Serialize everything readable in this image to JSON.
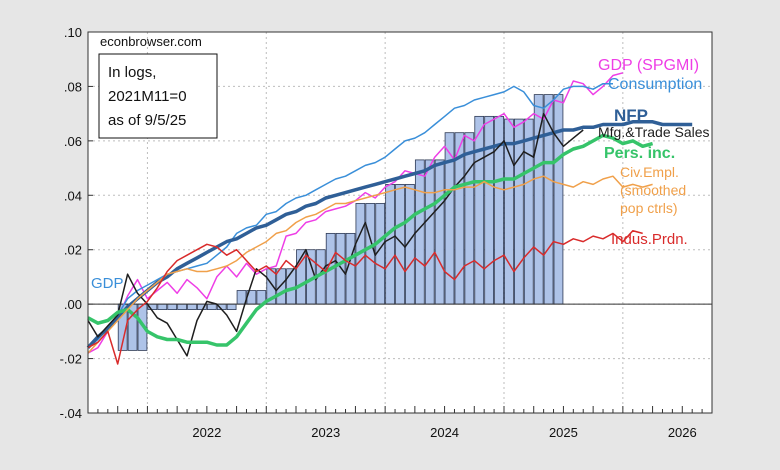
{
  "chart_data": {
    "type": "line",
    "source": "econbrowser.com",
    "note_lines": [
      "In logs,",
      "2021M11=0",
      "as of 9/5/25"
    ],
    "ylim": [
      -0.04,
      0.1
    ],
    "yticks": [
      -0.04,
      -0.02,
      0.0,
      0.02,
      0.04,
      0.06,
      0.08,
      0.1
    ],
    "ytick_labels": [
      "-.04",
      "-.02",
      ".00",
      ".02",
      ".04",
      ".06",
      ".08",
      ".10"
    ],
    "xlim": [
      2021.5,
      2026.75
    ],
    "xticks": [
      2022,
      2023,
      2024,
      2025,
      2026
    ],
    "xtick_labels": [
      "2022",
      "2023",
      "2024",
      "2025",
      "2026"
    ],
    "grid": true,
    "bars": {
      "name": "GDP",
      "color": "#aec3e8",
      "edge": "#2e3a55",
      "quarters": [
        2021.75,
        2022.0,
        2022.25,
        2022.5,
        2022.75,
        2023.0,
        2023.25,
        2023.5,
        2023.75,
        2024.0,
        2024.25,
        2024.5,
        2024.75,
        2025.0,
        2025.25
      ],
      "values": [
        -0.017,
        -0.002,
        -0.002,
        -0.002,
        0.005,
        0.013,
        0.02,
        0.026,
        0.037,
        0.044,
        0.053,
        0.063,
        0.069,
        0.068,
        0.077
      ]
    },
    "series": [
      {
        "name": "GDP (SPGMI)",
        "color": "#ee3ee6",
        "width": 1.5,
        "start": 2021.5,
        "values": [
          -0.018,
          -0.016,
          -0.01,
          -0.005,
          0.003,
          0.009,
          0.002,
          0.005,
          0.008,
          0.004,
          0.009,
          0.006,
          0.002,
          0.01,
          0.014,
          0.01,
          0.015,
          0.011,
          0.013,
          0.014,
          0.025,
          0.026,
          0.03,
          0.031,
          0.034,
          0.035,
          0.036,
          0.038,
          0.041,
          0.039,
          0.043,
          0.045,
          0.049,
          0.048,
          0.047,
          0.054,
          0.058,
          0.053,
          0.062,
          0.06,
          0.066,
          0.068,
          0.07,
          0.065,
          0.067,
          0.07,
          0.068,
          0.075,
          0.074,
          0.082,
          0.081,
          0.077,
          0.08,
          0.084,
          0.085
        ]
      },
      {
        "name": "Consumption",
        "color": "#3a8fd9",
        "width": 1.5,
        "start": 2021.5,
        "values": [
          -0.016,
          -0.013,
          -0.009,
          -0.004,
          0.002,
          0.005,
          0.007,
          0.009,
          0.011,
          0.012,
          0.013,
          0.014,
          0.015,
          0.018,
          0.021,
          0.026,
          0.028,
          0.029,
          0.033,
          0.034,
          0.037,
          0.039,
          0.04,
          0.042,
          0.044,
          0.046,
          0.047,
          0.049,
          0.051,
          0.052,
          0.054,
          0.057,
          0.06,
          0.061,
          0.063,
          0.066,
          0.069,
          0.072,
          0.073,
          0.075,
          0.076,
          0.077,
          0.078,
          0.08,
          0.078,
          0.073,
          0.072,
          0.075,
          0.079,
          0.08,
          0.08,
          0.079,
          0.081,
          0.081
        ]
      },
      {
        "name": "NFP",
        "color": "#2f5f97",
        "width": 3.5,
        "start": 2021.5,
        "values": [
          -0.016,
          -0.012,
          -0.009,
          -0.005,
          -0.001,
          0.002,
          0.005,
          0.008,
          0.01,
          0.013,
          0.015,
          0.017,
          0.019,
          0.021,
          0.023,
          0.024,
          0.026,
          0.028,
          0.029,
          0.031,
          0.033,
          0.034,
          0.036,
          0.037,
          0.039,
          0.04,
          0.041,
          0.042,
          0.043,
          0.044,
          0.045,
          0.046,
          0.047,
          0.048,
          0.049,
          0.051,
          0.052,
          0.053,
          0.055,
          0.056,
          0.057,
          0.058,
          0.059,
          0.059,
          0.06,
          0.061,
          0.062,
          0.063,
          0.064,
          0.064,
          0.065,
          0.065,
          0.066,
          0.066,
          0.066,
          0.067,
          0.067,
          0.067,
          0.066,
          0.066,
          0.066,
          0.066
        ]
      },
      {
        "name": "Mfg.&Trade Sales",
        "color": "#1e1e1e",
        "width": 1.5,
        "start": 2021.5,
        "values": [
          -0.006,
          -0.012,
          -0.008,
          -0.004,
          0.011,
          0.004,
          0.0,
          -0.005,
          -0.007,
          -0.013,
          -0.019,
          -0.006,
          0.001,
          0.0,
          -0.004,
          -0.01,
          0.002,
          0.013,
          0.01,
          0.005,
          0.009,
          0.014,
          0.02,
          0.009,
          0.014,
          0.016,
          0.011,
          0.022,
          0.03,
          0.018,
          0.023,
          0.025,
          0.021,
          0.026,
          0.03,
          0.034,
          0.038,
          0.043,
          0.047,
          0.052,
          0.054,
          0.056,
          0.06,
          0.051,
          0.056,
          0.054,
          0.07,
          0.063,
          0.058,
          0.061,
          0.064
        ]
      },
      {
        "name": "Pers. inc.",
        "color": "#36c46a",
        "width": 3.5,
        "start": 2021.5,
        "values": [
          -0.005,
          -0.007,
          -0.006,
          -0.003,
          -0.002,
          -0.005,
          -0.01,
          -0.012,
          -0.013,
          -0.013,
          -0.014,
          -0.014,
          -0.014,
          -0.015,
          -0.015,
          -0.012,
          -0.007,
          -0.002,
          0.001,
          0.003,
          0.005,
          0.006,
          0.008,
          0.01,
          0.012,
          0.014,
          0.016,
          0.018,
          0.02,
          0.022,
          0.025,
          0.028,
          0.03,
          0.033,
          0.035,
          0.037,
          0.04,
          0.043,
          0.044,
          0.045,
          0.045,
          0.045,
          0.046,
          0.046,
          0.048,
          0.05,
          0.052,
          0.052,
          0.055,
          0.057,
          0.058,
          0.06,
          0.062,
          0.061,
          0.059,
          0.06,
          0.058,
          0.059
        ]
      },
      {
        "name": "Civ.Empl. (smoothed pop ctrls)",
        "label_lines": [
          "Civ.Empl.",
          "(smoothed",
          "pop ctrls)"
        ],
        "color": "#f0a04a",
        "width": 1.5,
        "start": 2021.5,
        "values": [
          -0.018,
          -0.014,
          -0.01,
          -0.006,
          -0.002,
          0.002,
          0.005,
          0.008,
          0.011,
          0.012,
          0.013,
          0.012,
          0.012,
          0.013,
          0.014,
          0.016,
          0.019,
          0.021,
          0.023,
          0.026,
          0.027,
          0.03,
          0.032,
          0.033,
          0.035,
          0.037,
          0.037,
          0.038,
          0.039,
          0.04,
          0.041,
          0.042,
          0.043,
          0.042,
          0.041,
          0.041,
          0.042,
          0.042,
          0.043,
          0.043,
          0.045,
          0.043,
          0.042,
          0.043,
          0.044,
          0.046,
          0.047,
          0.045,
          0.044,
          0.043,
          0.045,
          0.044,
          0.046,
          0.047,
          0.043,
          0.044,
          0.043,
          0.044
        ]
      },
      {
        "name": "Indus.Prdn.",
        "color": "#d92b2b",
        "width": 1.5,
        "start": 2021.5,
        "values": [
          -0.016,
          -0.014,
          -0.01,
          -0.022,
          -0.006,
          -0.002,
          0.001,
          0.006,
          0.012,
          0.016,
          0.018,
          0.02,
          0.022,
          0.021,
          0.018,
          0.02,
          0.016,
          0.012,
          0.014,
          0.011,
          0.016,
          0.013,
          0.018,
          0.015,
          0.012,
          0.019,
          0.016,
          0.014,
          0.018,
          0.015,
          0.013,
          0.018,
          0.012,
          0.017,
          0.014,
          0.019,
          0.012,
          0.009,
          0.014,
          0.016,
          0.013,
          0.016,
          0.018,
          0.012,
          0.017,
          0.021,
          0.018,
          0.023,
          0.022,
          0.024,
          0.023,
          0.025,
          0.024,
          0.026,
          0.023,
          0.027,
          0.026
        ]
      }
    ]
  },
  "labels": {
    "gdp_spgmi": "GDP (SPGMI)",
    "consumption": "Consumption",
    "nfp": "NFP",
    "mfg": "Mfg.&Trade Sales",
    "pers_inc": "Pers. inc.",
    "civ1": "Civ.Empl.",
    "civ2": "(smoothed",
    "civ3": "pop ctrls)",
    "indus": "Indus.Prdn.",
    "gdp": "GDP"
  }
}
